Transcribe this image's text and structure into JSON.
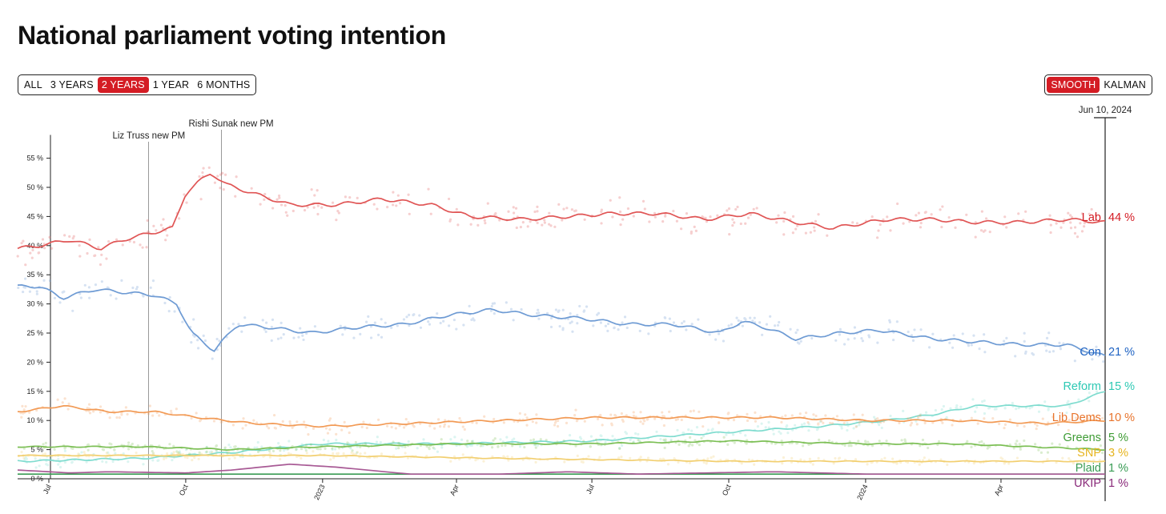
{
  "title": "National parliament voting intention",
  "range_buttons": [
    {
      "label": "ALL",
      "active": false
    },
    {
      "label": "3 YEARS",
      "active": false
    },
    {
      "label": "2 YEARS",
      "active": true
    },
    {
      "label": "1 YEAR",
      "active": false
    },
    {
      "label": "6 MONTHS",
      "active": false
    }
  ],
  "mode_buttons": [
    {
      "label": "SMOOTH",
      "active": true
    },
    {
      "label": "KALMAN",
      "active": false
    }
  ],
  "chart_data": {
    "type": "line",
    "cursor_date_label": "Jun 10, 2024",
    "cursor_date": "2024-06-10",
    "x_range": [
      "2022-06-10",
      "2024-06-10"
    ],
    "ylim": [
      0,
      59
    ],
    "y_ticks": [
      {
        "value": 0,
        "label": "0 %"
      },
      {
        "value": 5,
        "label": "5 %"
      },
      {
        "value": 10,
        "label": "10 %"
      },
      {
        "value": 15,
        "label": "15 %"
      },
      {
        "value": 20,
        "label": "20 %"
      },
      {
        "value": 25,
        "label": "25 %"
      },
      {
        "value": 30,
        "label": "30 %"
      },
      {
        "value": 35,
        "label": "35 %"
      },
      {
        "value": 40,
        "label": "40 %"
      },
      {
        "value": 45,
        "label": "45 %"
      },
      {
        "value": 50,
        "label": "50 %"
      },
      {
        "value": 55,
        "label": "55 %"
      }
    ],
    "x_ticks": [
      {
        "date": "2022-07-01",
        "label": "Jul"
      },
      {
        "date": "2022-10-01",
        "label": "Oct"
      },
      {
        "date": "2023-01-01",
        "label": "2023"
      },
      {
        "date": "2023-04-01",
        "label": "Apr"
      },
      {
        "date": "2023-07-01",
        "label": "Jul"
      },
      {
        "date": "2023-10-01",
        "label": "Oct"
      },
      {
        "date": "2024-01-01",
        "label": "2024"
      },
      {
        "date": "2024-04-01",
        "label": "Apr"
      }
    ],
    "events": [
      {
        "date": "2022-09-06",
        "label": "Liz Truss new PM"
      },
      {
        "date": "2022-10-25",
        "label": "Rishi Sunak new PM"
      }
    ],
    "grid": false,
    "legend": "end-labels",
    "series": [
      {
        "name": "Lab",
        "value_label": "44 %",
        "color": "#e05555",
        "label_color": "#d41c24",
        "points": [
          [
            "2022-06-10",
            39.5
          ],
          [
            "2022-06-25",
            40
          ],
          [
            "2022-07-15",
            41
          ],
          [
            "2022-08-05",
            39.5
          ],
          [
            "2022-08-20",
            41
          ],
          [
            "2022-09-05",
            42
          ],
          [
            "2022-09-22",
            43
          ],
          [
            "2022-10-01",
            49
          ],
          [
            "2022-10-10",
            51
          ],
          [
            "2022-10-18",
            52.5
          ],
          [
            "2022-10-28",
            50.5
          ],
          [
            "2022-11-15",
            49
          ],
          [
            "2022-12-10",
            47
          ],
          [
            "2023-01-10",
            47
          ],
          [
            "2023-02-10",
            48
          ],
          [
            "2023-03-15",
            47
          ],
          [
            "2023-04-10",
            45
          ],
          [
            "2023-05-15",
            44.5
          ],
          [
            "2023-06-15",
            45
          ],
          [
            "2023-07-15",
            45.5
          ],
          [
            "2023-08-15",
            45.5
          ],
          [
            "2023-09-15",
            44.5
          ],
          [
            "2023-10-15",
            45.5
          ],
          [
            "2023-11-15",
            44
          ],
          [
            "2023-12-10",
            43
          ],
          [
            "2024-01-15",
            44.5
          ],
          [
            "2024-02-15",
            44.5
          ],
          [
            "2024-03-15",
            44
          ],
          [
            "2024-04-15",
            44
          ],
          [
            "2024-05-15",
            44.5
          ],
          [
            "2024-06-10",
            44
          ]
        ]
      },
      {
        "name": "Con",
        "value_label": "21 %",
        "color": "#6e9bd4",
        "label_color": "#1f63c3",
        "points": [
          [
            "2022-06-10",
            33
          ],
          [
            "2022-06-25",
            33
          ],
          [
            "2022-07-10",
            31
          ],
          [
            "2022-08-01",
            32.5
          ],
          [
            "2022-08-20",
            32
          ],
          [
            "2022-09-10",
            31.5
          ],
          [
            "2022-09-25",
            30
          ],
          [
            "2022-10-05",
            25
          ],
          [
            "2022-10-20",
            22
          ],
          [
            "2022-11-05",
            26.5
          ],
          [
            "2022-11-25",
            26
          ],
          [
            "2022-12-25",
            25
          ],
          [
            "2023-01-25",
            26
          ],
          [
            "2023-02-25",
            26.5
          ],
          [
            "2023-03-25",
            28
          ],
          [
            "2023-04-25",
            29
          ],
          [
            "2023-05-25",
            28
          ],
          [
            "2023-06-25",
            27.5
          ],
          [
            "2023-07-25",
            26.5
          ],
          [
            "2023-08-25",
            26.5
          ],
          [
            "2023-09-25",
            25
          ],
          [
            "2023-10-10",
            27
          ],
          [
            "2023-10-25",
            26
          ],
          [
            "2023-11-15",
            24
          ],
          [
            "2023-12-15",
            25
          ],
          [
            "2024-01-10",
            25.5
          ],
          [
            "2024-02-15",
            24
          ],
          [
            "2024-03-15",
            23.5
          ],
          [
            "2024-04-15",
            23
          ],
          [
            "2024-05-15",
            23
          ],
          [
            "2024-06-10",
            21
          ]
        ]
      },
      {
        "name": "Reform",
        "value_label": "15 %",
        "color": "#7fdccf",
        "label_color": "#2ec9b4",
        "points": [
          [
            "2022-06-10",
            3
          ],
          [
            "2022-09-01",
            3.5
          ],
          [
            "2022-11-01",
            4.5
          ],
          [
            "2023-01-01",
            6
          ],
          [
            "2023-04-01",
            6
          ],
          [
            "2023-07-01",
            6.5
          ],
          [
            "2023-10-01",
            8
          ],
          [
            "2023-12-01",
            9
          ],
          [
            "2024-01-15",
            10
          ],
          [
            "2024-02-15",
            11
          ],
          [
            "2024-03-15",
            12.5
          ],
          [
            "2024-04-15",
            12.5
          ],
          [
            "2024-05-15",
            12.5
          ],
          [
            "2024-06-10",
            15
          ]
        ]
      },
      {
        "name": "Lib Dems",
        "value_label": "10 %",
        "color": "#f29a55",
        "label_color": "#e8742c",
        "points": [
          [
            "2022-06-10",
            11.5
          ],
          [
            "2022-07-10",
            12.5
          ],
          [
            "2022-08-10",
            11.5
          ],
          [
            "2022-09-10",
            11.5
          ],
          [
            "2022-10-10",
            10.5
          ],
          [
            "2022-11-15",
            9.5
          ],
          [
            "2023-01-01",
            9
          ],
          [
            "2023-03-01",
            9.5
          ],
          [
            "2023-05-01",
            10
          ],
          [
            "2023-07-01",
            10.5
          ],
          [
            "2023-09-01",
            10.5
          ],
          [
            "2023-11-01",
            10.5
          ],
          [
            "2024-01-01",
            10
          ],
          [
            "2024-03-01",
            10
          ],
          [
            "2024-05-01",
            9.5
          ],
          [
            "2024-06-10",
            10
          ]
        ]
      },
      {
        "name": "Greens",
        "value_label": "5 %",
        "color": "#7cbf55",
        "label_color": "#3f9c35",
        "points": [
          [
            "2022-06-10",
            5.5
          ],
          [
            "2022-09-01",
            5.5
          ],
          [
            "2022-11-01",
            5
          ],
          [
            "2023-01-01",
            5.5
          ],
          [
            "2023-04-01",
            6
          ],
          [
            "2023-07-01",
            6
          ],
          [
            "2023-10-01",
            6.5
          ],
          [
            "2024-01-01",
            6
          ],
          [
            "2024-03-01",
            6
          ],
          [
            "2024-06-10",
            5
          ]
        ]
      },
      {
        "name": "SNP",
        "value_label": "3 %",
        "color": "#f2cf70",
        "label_color": "#e6b41e",
        "points": [
          [
            "2022-06-10",
            4
          ],
          [
            "2022-10-01",
            4
          ],
          [
            "2023-01-01",
            4
          ],
          [
            "2023-05-01",
            3.5
          ],
          [
            "2023-10-01",
            3
          ],
          [
            "2024-01-01",
            3
          ],
          [
            "2024-06-10",
            3
          ]
        ]
      },
      {
        "name": "Plaid",
        "value_label": "1 %",
        "color": "#3a9c55",
        "label_color": "#3a9c55",
        "points": [
          [
            "2022-06-10",
            0.8
          ],
          [
            "2024-06-10",
            0.8
          ]
        ]
      },
      {
        "name": "UKIP",
        "value_label": "1 %",
        "color": "#a85a95",
        "label_color": "#8a2a7a",
        "points": [
          [
            "2022-06-10",
            1.5
          ],
          [
            "2022-07-15",
            1
          ],
          [
            "2022-08-10",
            1.2
          ],
          [
            "2022-10-01",
            1
          ],
          [
            "2022-11-01",
            1.5
          ],
          [
            "2022-12-10",
            2.5
          ],
          [
            "2023-01-10",
            2
          ],
          [
            "2023-03-01",
            0.8
          ],
          [
            "2023-05-01",
            0.8
          ],
          [
            "2023-06-15",
            1.2
          ],
          [
            "2023-08-01",
            0.8
          ],
          [
            "2023-11-01",
            1.2
          ],
          [
            "2024-01-01",
            0.8
          ],
          [
            "2024-06-10",
            0.8
          ]
        ]
      }
    ]
  }
}
